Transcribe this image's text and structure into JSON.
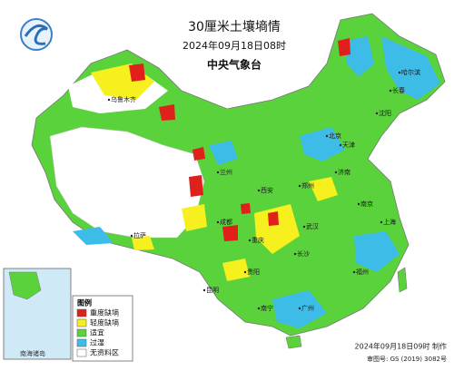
{
  "header": {
    "title": "30厘米土壤墒情",
    "date": "2024年09月18日08时",
    "agency": "中央气象台"
  },
  "legend": {
    "title": "图例",
    "items": [
      {
        "label": "重度缺墒",
        "color": "#e0201b"
      },
      {
        "label": "轻度缺墒",
        "color": "#f5f01e"
      },
      {
        "label": "适宜",
        "color": "#5ad23c"
      },
      {
        "label": "过湿",
        "color": "#3cbce6"
      },
      {
        "label": "无资料区",
        "color": "#ffffff"
      }
    ]
  },
  "cities": [
    "哈尔滨",
    "长春",
    "沈阳",
    "北京",
    "天津",
    "济南",
    "郑州",
    "西安",
    "兰州",
    "武汉",
    "上海",
    "南京",
    "长沙",
    "成都",
    "重庆",
    "贵阳",
    "昆明",
    "南宁",
    "广州",
    "福州",
    "拉萨",
    "乌鲁木齐"
  ],
  "inset": {
    "label": "南海诸岛"
  },
  "footer": {
    "made": "2024年09月18日09时 制作",
    "approval": "审图号: GS (2019) 3082号"
  }
}
